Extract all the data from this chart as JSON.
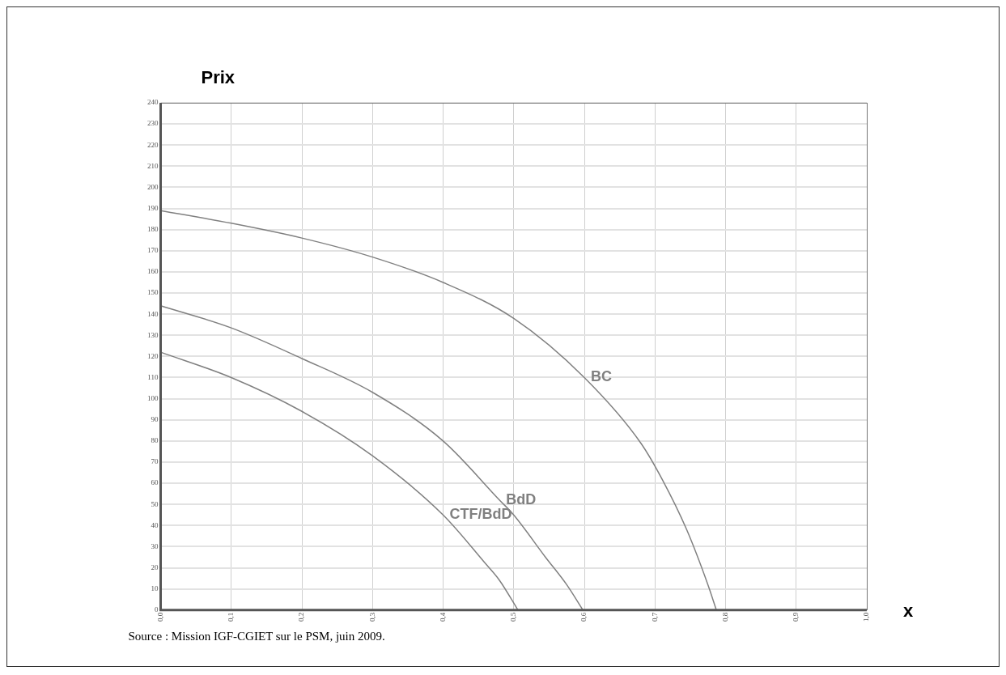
{
  "chart_data": {
    "type": "line",
    "ylabel": "Prix",
    "xlabel": "x",
    "annotations": [
      "Source : Mission IGF-CGIET sur le PSM, juin 2009."
    ],
    "series": [
      {
        "name": "BC",
        "color": "#808080",
        "x": [
          0,
          0.1,
          0.2,
          0.3,
          0.4,
          0.5,
          0.6,
          0.68,
          0.71,
          0.745,
          0.775,
          0.787
        ],
        "values": [
          189,
          183,
          176,
          167,
          155,
          138,
          110,
          79,
          62,
          38,
          12,
          0
        ]
      },
      {
        "name": "BdD",
        "color": "#808080",
        "x": [
          0,
          0.1,
          0.2,
          0.3,
          0.4,
          0.48,
          0.5,
          0.545,
          0.575,
          0.598
        ],
        "values": [
          144,
          133.5,
          119,
          103,
          80,
          52,
          45,
          25,
          12,
          0
        ]
      },
      {
        "name": "CTF/BdD",
        "color": "#808080",
        "x": [
          0,
          0.1,
          0.2,
          0.3,
          0.4,
          0.46,
          0.48,
          0.506
        ],
        "values": [
          122,
          110,
          94,
          73,
          45,
          22,
          14,
          0
        ]
      }
    ],
    "xlim": [
      0,
      1
    ],
    "xticks": [
      {
        "value": 0,
        "label": "0,0"
      },
      {
        "value": 0.1,
        "label": "0,1"
      },
      {
        "value": 0.2,
        "label": "0,2"
      },
      {
        "value": 0.3,
        "label": "0,3"
      },
      {
        "value": 0.4,
        "label": "0,4"
      },
      {
        "value": 0.5,
        "label": "0,5"
      },
      {
        "value": 0.6,
        "label": "0,6"
      },
      {
        "value": 0.7,
        "label": "0,7"
      },
      {
        "value": 0.8,
        "label": "0,8"
      },
      {
        "value": 0.9,
        "label": "0,9"
      },
      {
        "value": 1,
        "label": "1,0"
      }
    ],
    "ylim": [
      0,
      240
    ],
    "yticks": [
      0,
      10,
      20,
      30,
      40,
      50,
      60,
      70,
      80,
      90,
      100,
      110,
      120,
      130,
      140,
      150,
      160,
      170,
      180,
      190,
      200,
      210,
      220,
      230,
      240
    ],
    "grid": true,
    "legend": false,
    "marker": "none",
    "line_style": "solid"
  }
}
